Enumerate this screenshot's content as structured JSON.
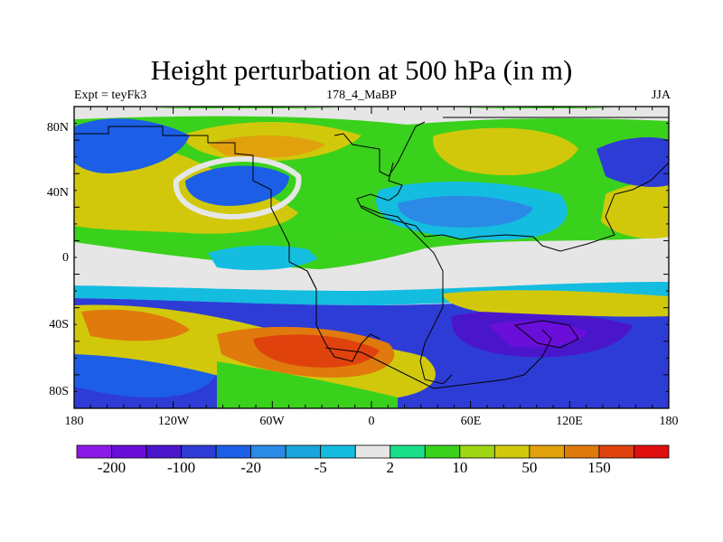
{
  "title": "Height perturbation at 500 hPa (in m)",
  "left_string": "Expt = teyFk3",
  "center_string": "178_4_MaBP",
  "right_string": "JJA",
  "y_ticks": [
    "80N",
    "40N",
    "0",
    "40S",
    "80S"
  ],
  "x_ticks": [
    "180",
    "120W",
    "60W",
    "0",
    "60E",
    "120E",
    "180"
  ],
  "colorbar": {
    "colors": [
      "#8c1ae6",
      "#6a0ed9",
      "#4a16cc",
      "#2e3cd6",
      "#1c5ee6",
      "#2a8ae6",
      "#1aa6dc",
      "#14bde0",
      "#e6e6e6",
      "#1ae08a",
      "#3ad11c",
      "#9ed614",
      "#d1c80c",
      "#e0a10c",
      "#e07a0c",
      "#e0420e",
      "#e00e0e"
    ],
    "labels": [
      {
        "text": "-200",
        "after_box": 1
      },
      {
        "text": "-100",
        "after_box": 3
      },
      {
        "text": "-20",
        "after_box": 5
      },
      {
        "text": "-5",
        "after_box": 7
      },
      {
        "text": "2",
        "after_box": 9
      },
      {
        "text": "10",
        "after_box": 11
      },
      {
        "text": "50",
        "after_box": 13
      },
      {
        "text": "150",
        "after_box": 15
      }
    ]
  },
  "map_colors": {
    "background": "#e6e6e6",
    "coast": "#000000"
  }
}
